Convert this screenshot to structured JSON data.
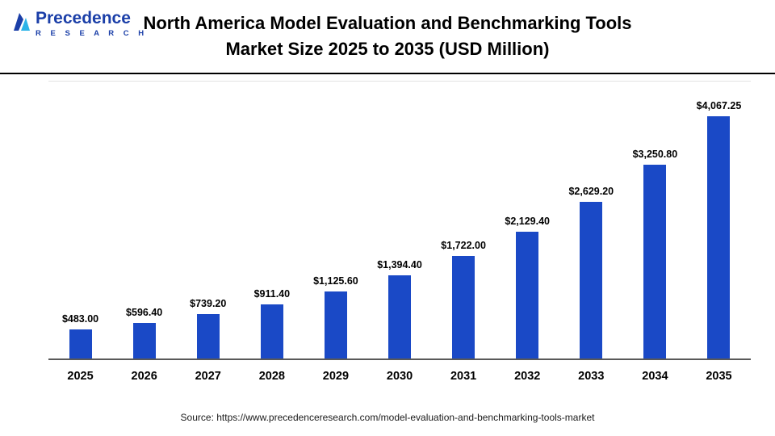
{
  "meta": {
    "accent": "#1a49c6",
    "logo_blue": "#1b3fa8",
    "logo_cyan": "#2bb3e8"
  },
  "header": {
    "logo": {
      "line1": "Precedence",
      "line2": "R E S E A R C H"
    },
    "title_line1": "North America Model Evaluation and Benchmarking Tools",
    "title_line2": "Market Size 2025 to 2035 (USD Million)"
  },
  "chart_data": {
    "type": "bar",
    "title": "North America Model Evaluation and Benchmarking Tools Market Size 2025 to 2035 (USD Million)",
    "categories": [
      "2025",
      "2026",
      "2027",
      "2028",
      "2029",
      "2030",
      "2031",
      "2032",
      "2033",
      "2034",
      "2035"
    ],
    "values": [
      483.0,
      596.4,
      739.2,
      911.4,
      1125.6,
      1394.4,
      1722.0,
      2129.4,
      2629.2,
      3250.8,
      4067.25
    ],
    "value_labels": [
      "$483.00",
      "$596.40",
      "$739.20",
      "$911.40",
      "$1,125.60",
      "$1,394.40",
      "$1,722.00",
      "$2,129.40",
      "$2,629.20",
      "$3,250.80",
      "$4,067.25"
    ],
    "xlabel": "",
    "ylabel": "",
    "ylim": [
      0,
      4500
    ],
    "grid": false,
    "legend": false,
    "bar_color": "#1a49c6"
  },
  "footer": {
    "source": "Source: https://www.precedenceresearch.com/model-evaluation-and-benchmarking-tools-market"
  }
}
